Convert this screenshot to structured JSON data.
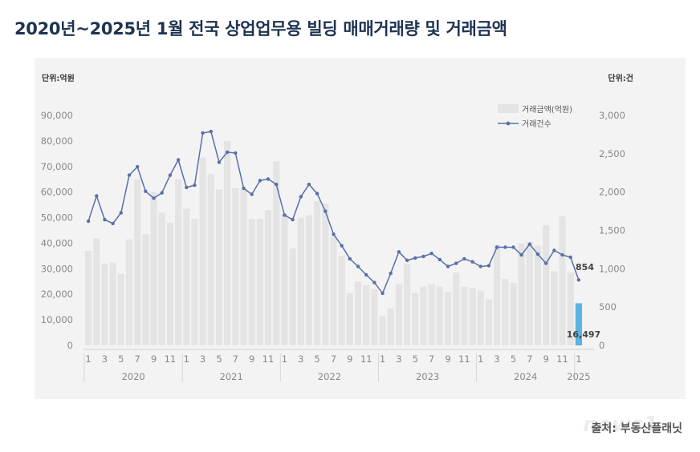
{
  "title": "2020년~2025년 1월 전국 상업업무용 빌딩 매매거래량 및 거래금액",
  "source": "출처: 부동산플래닛",
  "watermark": "news1",
  "chart_data": {
    "type": "bar+line",
    "left_unit": "단위:억원",
    "right_unit": "단위:건",
    "y_left_ticks": [
      "90,000",
      "80,000",
      "70,000",
      "60,000",
      "50,000",
      "40,000",
      "30,000",
      "20,000",
      "10,000",
      "0"
    ],
    "y_right_ticks": [
      "3,000",
      "2,500",
      "2,000",
      "1,500",
      "1,000",
      "500",
      "0"
    ],
    "ylim_left": [
      0,
      90000
    ],
    "ylim_right": [
      0,
      3000
    ],
    "legend": {
      "bar": "거래금액(억원)",
      "line": "거래건수",
      "placement": "top-right"
    },
    "colors": {
      "bar": "#e4e4e4",
      "bar_highlight": "#5ab4e2",
      "line": "#5a6fa8"
    },
    "x_month_labels": [
      "1",
      "3",
      "5",
      "7",
      "9",
      "11",
      "1",
      "3",
      "5",
      "7",
      "9",
      "11",
      "1",
      "3",
      "5",
      "7",
      "9",
      "11",
      "1",
      "3",
      "5",
      "7",
      "9",
      "11",
      "1",
      "3",
      "5",
      "7",
      "9",
      "11",
      "1"
    ],
    "years": [
      "2020",
      "2021",
      "2022",
      "2023",
      "2024",
      "2025"
    ],
    "amounts": [
      37000,
      42000,
      32000,
      32500,
      28000,
      41500,
      65000,
      43500,
      60000,
      52000,
      48000,
      65000,
      53500,
      49500,
      73500,
      67000,
      61000,
      80000,
      61500,
      61000,
      49500,
      49500,
      53000,
      72000,
      51500,
      38000,
      50000,
      51000,
      56500,
      55500,
      42500,
      35000,
      20500,
      25000,
      23500,
      22000,
      11500,
      14500,
      24000,
      32000,
      20500,
      23000,
      24000,
      23000,
      21000,
      28500,
      23000,
      22500,
      21500,
      18000,
      39500,
      26000,
      24500,
      40000,
      40500,
      39000,
      47000,
      29000,
      50500,
      28500,
      16497
    ],
    "counts": [
      1620,
      1950,
      1640,
      1590,
      1730,
      2220,
      2330,
      2010,
      1920,
      1990,
      2220,
      2420,
      2060,
      2090,
      2770,
      2790,
      2390,
      2520,
      2510,
      2050,
      1970,
      2150,
      2170,
      2100,
      1700,
      1640,
      1940,
      2100,
      1980,
      1750,
      1450,
      1300,
      1130,
      1030,
      920,
      820,
      680,
      940,
      1220,
      1110,
      1140,
      1160,
      1200,
      1120,
      1030,
      1070,
      1130,
      1090,
      1030,
      1040,
      1280,
      1280,
      1280,
      1180,
      1320,
      1190,
      1070,
      1240,
      1180,
      1150,
      854
    ],
    "annotations": {
      "last_count": "854",
      "last_amount": "16,497"
    }
  }
}
